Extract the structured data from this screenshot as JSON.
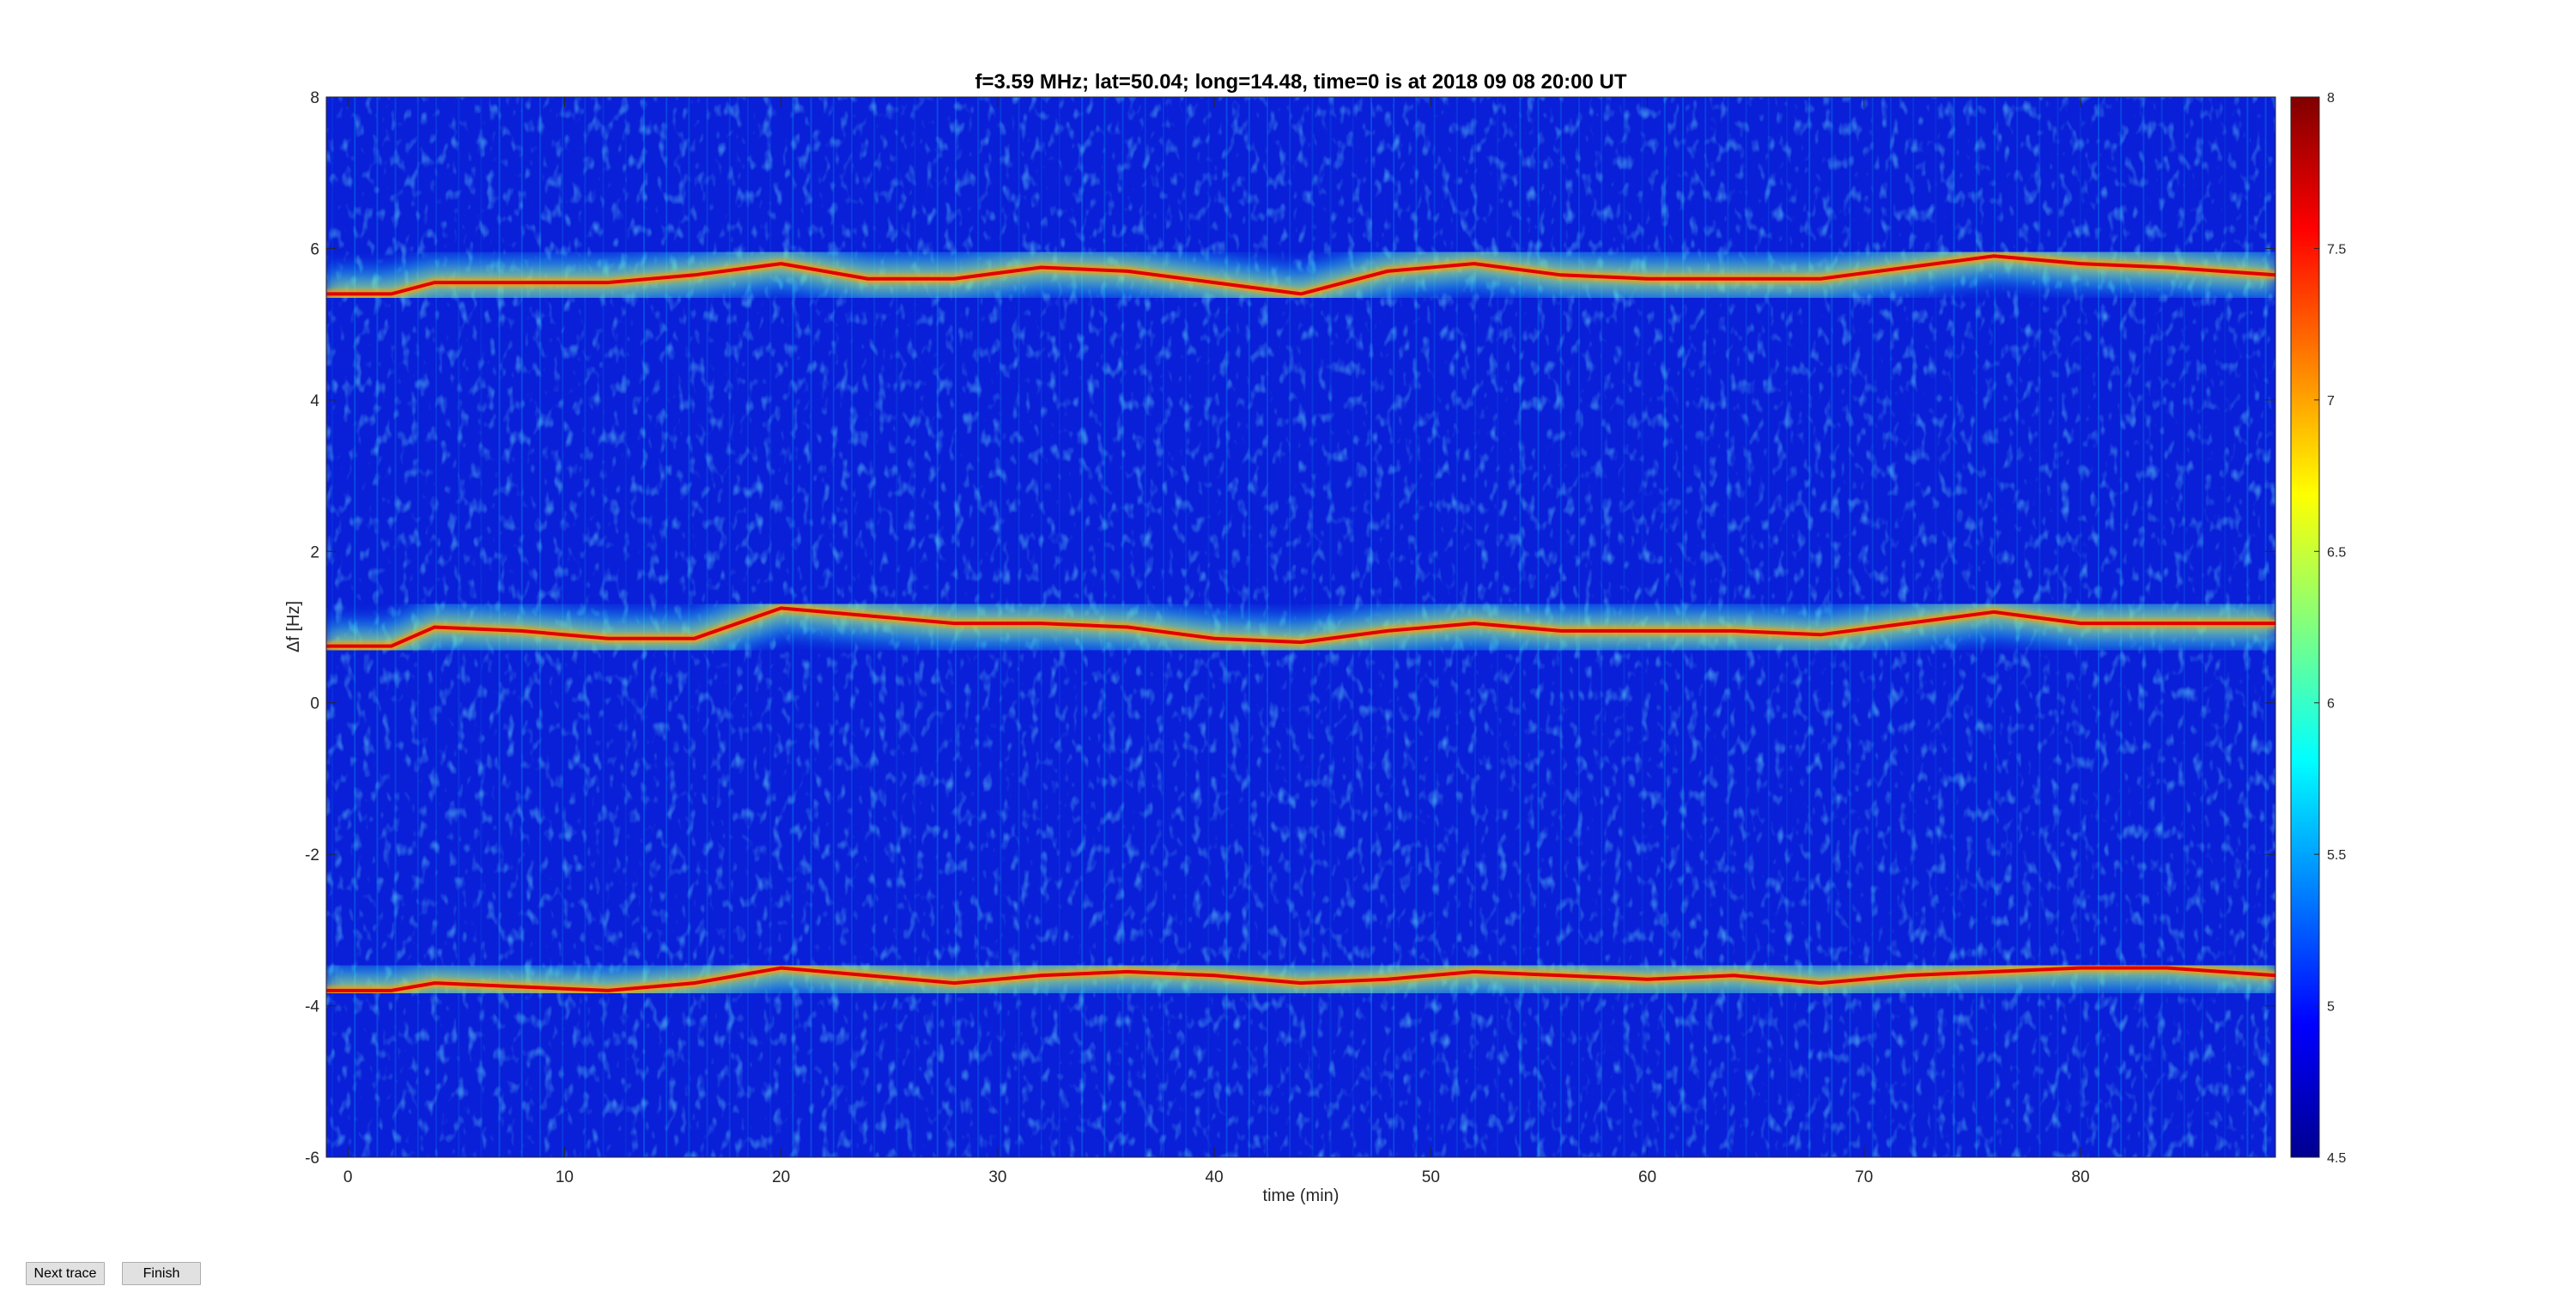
{
  "chart_data": {
    "type": "heatmap",
    "title": "f=3.59 MHz;  lat=50.04; long=14.48, time=0 is at 2018 09 08 20:00 UT",
    "xlabel": "time (min)",
    "ylabel": "Δf [Hz]",
    "xlim": [
      -1,
      89
    ],
    "ylim": [
      -6,
      8
    ],
    "xticks": [
      0,
      10,
      20,
      30,
      40,
      50,
      60,
      70,
      80
    ],
    "yticks": [
      -6,
      -4,
      -2,
      0,
      2,
      4,
      6,
      8
    ],
    "colorbar": {
      "colormap": "jet",
      "range": [
        4.5,
        8
      ],
      "ticks": [
        4.5,
        5,
        5.5,
        6,
        6.5,
        7,
        7.5,
        8
      ]
    },
    "traces": [
      {
        "t": [
          -1,
          2,
          4,
          8,
          12,
          16,
          20,
          24,
          28,
          32,
          36,
          40,
          44,
          48,
          52,
          56,
          60,
          64,
          68,
          72,
          76,
          80,
          84,
          89
        ],
        "f": [
          5.4,
          5.4,
          5.55,
          5.55,
          5.55,
          5.65,
          5.8,
          5.6,
          5.6,
          5.75,
          5.7,
          5.55,
          5.4,
          5.7,
          5.8,
          5.65,
          5.6,
          5.6,
          5.6,
          5.75,
          5.9,
          5.8,
          5.75,
          5.65
        ]
      },
      {
        "t": [
          -1,
          2,
          4,
          8,
          12,
          16,
          20,
          24,
          28,
          32,
          36,
          40,
          44,
          48,
          52,
          56,
          60,
          64,
          68,
          72,
          76,
          80,
          84,
          89
        ],
        "f": [
          0.75,
          0.75,
          1.0,
          0.95,
          0.85,
          0.85,
          1.25,
          1.15,
          1.05,
          1.05,
          1.0,
          0.85,
          0.8,
          0.95,
          1.05,
          0.95,
          0.95,
          0.95,
          0.9,
          1.05,
          1.2,
          1.05,
          1.05,
          1.05
        ]
      },
      {
        "t": [
          -1,
          2,
          4,
          8,
          12,
          16,
          20,
          24,
          28,
          32,
          36,
          40,
          44,
          48,
          52,
          56,
          60,
          64,
          68,
          72,
          76,
          80,
          84,
          89
        ],
        "f": [
          -3.8,
          -3.8,
          -3.7,
          -3.75,
          -3.8,
          -3.7,
          -3.5,
          -3.6,
          -3.7,
          -3.6,
          -3.55,
          -3.6,
          -3.7,
          -3.65,
          -3.55,
          -3.6,
          -3.65,
          -3.6,
          -3.7,
          -3.6,
          -3.55,
          -3.5,
          -3.5,
          -3.6
        ]
      }
    ]
  },
  "controls": {
    "next_trace_label": "Next trace",
    "finish_label": "Finish"
  }
}
